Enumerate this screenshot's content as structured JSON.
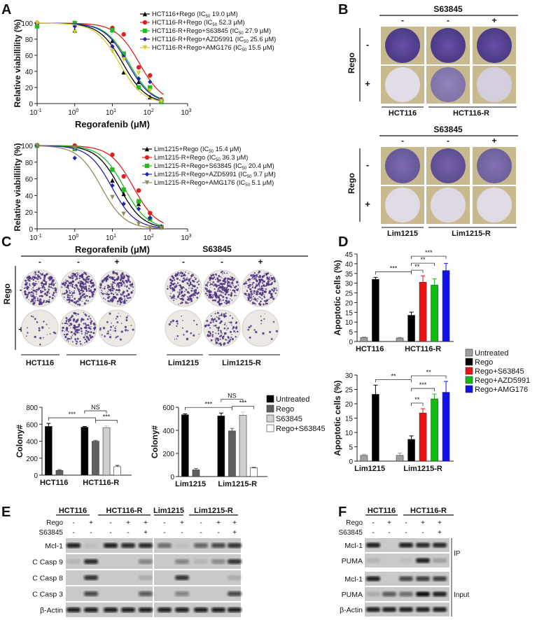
{
  "panels": {
    "a": "A",
    "b": "B",
    "c": "C",
    "d": "D",
    "e": "E",
    "f": "F"
  },
  "common": {
    "rego": "Rego",
    "s63845": "S63845",
    "minus": "-",
    "plus": "+",
    "ic_prefix": "IC",
    "ic_sub": "50"
  },
  "chart_data": [
    {
      "id": "A-top",
      "type": "line",
      "xscale": "log",
      "xlim": [
        0.1,
        1000
      ],
      "ylim": [
        0,
        100
      ],
      "xlabel": "Regorafenib (μM)",
      "ylabel": "Relative viabillility (%)",
      "xtick_base": "10",
      "xtick_exponents": [
        "-1",
        "0",
        "1",
        "2",
        "3"
      ],
      "yticks": [
        "0",
        "20",
        "40",
        "60",
        "80",
        "100"
      ],
      "x": [
        0.1,
        1,
        10,
        20,
        50,
        100,
        200
      ],
      "series": [
        {
          "name": "HCT116+Rego",
          "ic50": 19.0,
          "ic50_text": "19.0 μM",
          "color": "#000000",
          "marker": "triangle-up",
          "y": [
            100,
            91,
            78,
            39,
            27,
            8,
            4
          ]
        },
        {
          "name": "HCT116-R+Rego",
          "ic50": 52.3,
          "ic50_text": "52.3 μM",
          "color": "#e02020",
          "marker": "circle",
          "y": [
            100,
            100,
            94,
            86,
            45,
            35,
            5
          ]
        },
        {
          "name": "HCT116-R+Rego+S63845",
          "ic50": 27.9,
          "ic50_text": "27.9 μM",
          "color": "#22bb22",
          "marker": "square",
          "y": [
            96,
            100,
            91,
            62,
            20,
            20,
            2
          ]
        },
        {
          "name": "HCT116-R+Rego+AZD5991",
          "ic50": 25.6,
          "ic50_text": "25.6 μM",
          "color": "#2222aa",
          "marker": "diamond",
          "y": [
            100,
            96,
            71,
            58,
            31,
            27,
            4
          ]
        },
        {
          "name": "HCT116-R+Rego+AMG176",
          "ic50": 15.5,
          "ic50_text": "15.5 μM",
          "color": "#d8cc30",
          "marker": "triangle-down",
          "y": [
            100,
            89,
            65,
            55,
            38,
            16,
            3
          ]
        }
      ]
    },
    {
      "id": "A-bottom",
      "type": "line",
      "xscale": "log",
      "xlim": [
        0.1,
        1000
      ],
      "ylim": [
        0,
        100
      ],
      "xlabel": "Regorafenib (μM)",
      "ylabel": "Relative viabillility (%)",
      "xtick_base": "10",
      "xtick_exponents": [
        "-1",
        "0",
        "1",
        "2",
        "3"
      ],
      "yticks": [
        "0",
        "20",
        "40",
        "60",
        "80",
        "100"
      ],
      "x": [
        0.1,
        1,
        10,
        20,
        50,
        100,
        200
      ],
      "series": [
        {
          "name": "Lim1215+Rego",
          "ic50": 15.4,
          "ic50_text": "15.4 μM",
          "color": "#000000",
          "marker": "triangle-up",
          "y": [
            100,
            96,
            58,
            42,
            30,
            14,
            2
          ]
        },
        {
          "name": "Lim1215-R+Rego",
          "ic50": 36.3,
          "ic50_text": "36.3 μM",
          "color": "#e02020",
          "marker": "circle",
          "y": [
            100,
            100,
            89,
            63,
            46,
            19,
            2
          ]
        },
        {
          "name": "Lim1215-R+Rego+S63845",
          "ic50": 20.4,
          "ic50_text": "20.4 μM",
          "color": "#22bb22",
          "marker": "square",
          "y": [
            100,
            96,
            71,
            47,
            33,
            12,
            2
          ]
        },
        {
          "name": "Lim1215-R+Rego+AZD5991",
          "ic50": 9.7,
          "ic50_text": "9.7 μM",
          "color": "#2222aa",
          "marker": "diamond",
          "y": [
            100,
            85,
            52,
            30,
            24,
            13,
            3
          ]
        },
        {
          "name": "Lim1215-R+Rego+AMG176",
          "ic50": 5.1,
          "ic50_text": "5.1 μM",
          "color": "#958a5a",
          "marker": "triangle-down",
          "y": [
            100,
            97,
            38,
            18,
            6,
            2,
            1
          ]
        }
      ]
    },
    {
      "id": "C-left",
      "type": "bar",
      "ylabel": "Colony#",
      "ylim": [
        0,
        800
      ],
      "yticks": [
        "0",
        "200",
        "400",
        "600",
        "800"
      ],
      "series_colors": {
        "Untreated": "#000000",
        "Rego": "#606060",
        "S63845": "#d0d0d0",
        "Rego+S63845": "#ffffff"
      },
      "groups": [
        {
          "label": "HCT116",
          "bars": [
            {
              "series": "Untreated",
              "value": 575,
              "err": 35
            },
            {
              "series": "Rego",
              "value": 55,
              "err": 10
            }
          ]
        },
        {
          "label": "HCT116-R",
          "bars": [
            {
              "series": "Untreated",
              "value": 565,
              "err": 8
            },
            {
              "series": "Rego",
              "value": 400,
              "err": 10
            },
            {
              "series": "S63845",
              "value": 560,
              "err": 20
            },
            {
              "series": "Rego+S63845",
              "value": 100,
              "err": 15
            }
          ]
        }
      ],
      "annotations": [
        {
          "from": [
            0,
            0
          ],
          "to": [
            1,
            1
          ],
          "label": "***"
        },
        {
          "from": [
            1,
            1
          ],
          "to": [
            1,
            3
          ],
          "label": "***"
        },
        {
          "from": [
            1,
            0
          ],
          "to": [
            1,
            2
          ],
          "label": "NS"
        }
      ]
    },
    {
      "id": "C-right",
      "type": "bar",
      "ylabel": "Colony#",
      "ylim": [
        0,
        600
      ],
      "yticks": [
        "0",
        "200",
        "400",
        "600"
      ],
      "series_colors": {
        "Untreated": "#000000",
        "Rego": "#606060",
        "S63845": "#d0d0d0",
        "Rego+S63845": "#ffffff"
      },
      "legend": [
        "Untreated",
        "Rego",
        "S63845",
        "Rego+S63845"
      ],
      "groups": [
        {
          "label": "Lim1215",
          "bars": [
            {
              "series": "Untreated",
              "value": 535,
              "err": 8
            },
            {
              "series": "Rego",
              "value": 58,
              "err": 12
            }
          ]
        },
        {
          "label": "Lim1215-R",
          "bars": [
            {
              "series": "Untreated",
              "value": 525,
              "err": 25
            },
            {
              "series": "Rego",
              "value": 395,
              "err": 22
            },
            {
              "series": "S63845",
              "value": 530,
              "err": 30
            },
            {
              "series": "Rego+S63845",
              "value": 75,
              "err": 4
            }
          ]
        }
      ],
      "annotations": [
        {
          "from": [
            0,
            0
          ],
          "to": [
            1,
            1
          ],
          "label": "***"
        },
        {
          "from": [
            1,
            1
          ],
          "to": [
            1,
            3
          ],
          "label": "***"
        },
        {
          "from": [
            1,
            0
          ],
          "to": [
            1,
            2
          ],
          "label": "NS"
        }
      ]
    },
    {
      "id": "D-top",
      "type": "bar",
      "ylabel": "Apoptotic cells (%)",
      "ylim": [
        0,
        45
      ],
      "yticks": [
        "0",
        "5",
        "10",
        "15",
        "20",
        "25",
        "30",
        "35",
        "40",
        "45"
      ],
      "series_colors": {
        "Untreated": "#a0a0a0",
        "Rego": "#000000",
        "Rego+S63845": "#ee1111",
        "Rego+AZD5991": "#11bb11",
        "Rego+AMG176": "#1111ee"
      },
      "legend": [
        "Untreated",
        "Rego",
        "Rego+S63845",
        "Rego+AZD5991",
        "Rego+AMG176"
      ],
      "groups": [
        {
          "label": "HCT116",
          "bars": [
            {
              "series": "Untreated",
              "value": 2,
              "err": 0.4
            },
            {
              "series": "Rego",
              "value": 32,
              "err": 1
            }
          ]
        },
        {
          "label": "HCT116-R",
          "bars": [
            {
              "series": "Untreated",
              "value": 1.8,
              "err": 0.3
            },
            {
              "series": "Rego",
              "value": 13.5,
              "err": 1.6
            },
            {
              "series": "Rego+S63845",
              "value": 30.5,
              "err": 3.3
            },
            {
              "series": "Rego+AZD5991",
              "value": 29,
              "err": 3.2
            },
            {
              "series": "Rego+AMG176",
              "value": 36.5,
              "err": 3.7
            }
          ]
        }
      ],
      "annotations": [
        {
          "from": [
            0,
            1
          ],
          "to": [
            1,
            1
          ],
          "label": "***"
        },
        {
          "from": [
            1,
            1
          ],
          "to": [
            1,
            2
          ],
          "label": "**"
        },
        {
          "from": [
            1,
            1
          ],
          "to": [
            1,
            3
          ],
          "label": "**"
        },
        {
          "from": [
            1,
            1
          ],
          "to": [
            1,
            4
          ],
          "label": "***"
        }
      ]
    },
    {
      "id": "D-bottom",
      "type": "bar",
      "ylabel": "Apoptotic cells (%)",
      "ylim": [
        0,
        30
      ],
      "yticks": [
        "0",
        "5",
        "10",
        "15",
        "20",
        "25",
        "30"
      ],
      "series_colors": {
        "Untreated": "#a0a0a0",
        "Rego": "#000000",
        "Rego+S63845": "#ee1111",
        "Rego+AZD5991": "#11bb11",
        "Rego+AMG176": "#1111ee"
      },
      "groups": [
        {
          "label": "Lim1215",
          "bars": [
            {
              "series": "Untreated",
              "value": 2,
              "err": 0.4
            },
            {
              "series": "Rego",
              "value": 23.3,
              "err": 3.2
            }
          ]
        },
        {
          "label": "Lim1215-R",
          "bars": [
            {
              "series": "Untreated",
              "value": 2,
              "err": 0.8
            },
            {
              "series": "Rego",
              "value": 7.6,
              "err": 1.2
            },
            {
              "series": "Rego+S63845",
              "value": 16.8,
              "err": 1.5
            },
            {
              "series": "Rego+AZD5991",
              "value": 21.7,
              "err": 1.7
            },
            {
              "series": "Rego+AMG176",
              "value": 24,
              "err": 3.8
            }
          ]
        }
      ],
      "annotations": [
        {
          "from": [
            0,
            1
          ],
          "to": [
            1,
            1
          ],
          "label": "**"
        },
        {
          "from": [
            1,
            1
          ],
          "to": [
            1,
            2
          ],
          "label": "**"
        },
        {
          "from": [
            1,
            1
          ],
          "to": [
            1,
            3
          ],
          "label": "***"
        },
        {
          "from": [
            1,
            1
          ],
          "to": [
            1,
            4
          ],
          "label": "**"
        }
      ]
    }
  ],
  "panel_b": {
    "blocks": [
      {
        "cells": [
          "HCT116",
          "HCT116-R"
        ],
        "s63845": [
          "-",
          "-",
          "+"
        ],
        "rego": [
          "-",
          "+"
        ],
        "density": [
          [
            0.9,
            0.9,
            0.9
          ],
          [
            0.04,
            0.6,
            0.12
          ]
        ]
      },
      {
        "cells": [
          "Lim1215",
          "Lim1215-R"
        ],
        "s63845": [
          "-",
          "-",
          "+"
        ],
        "rego": [
          "-",
          "+"
        ],
        "density": [
          [
            0.75,
            0.8,
            0.7
          ],
          [
            0.05,
            0.06,
            0.05
          ]
        ]
      }
    ]
  },
  "panel_c": {
    "s63845": [
      "-",
      "-",
      "+",
      "-",
      "-",
      "+"
    ],
    "rego": [
      "-",
      "+"
    ],
    "cells": [
      "HCT116",
      "HCT116-R",
      "Lim1215",
      "Lim1215-R"
    ],
    "density": [
      [
        0.9,
        0.95,
        0.85,
        0.7,
        0.9,
        0.85
      ],
      [
        0.08,
        0.6,
        0.15,
        0.08,
        0.5,
        0.06
      ]
    ]
  },
  "panel_e": {
    "cells": [
      "HCT116",
      "HCT116-R",
      "Lim1215",
      "Lim1215-R"
    ],
    "rego": [
      "-",
      "+",
      "-",
      "+",
      "+",
      "-",
      "+",
      "-",
      "+",
      "+"
    ],
    "s63845": [
      "-",
      "-",
      "-",
      "-",
      "+",
      "-",
      "-",
      "-",
      "-",
      "+"
    ],
    "rows": [
      {
        "label": "Mcl-1",
        "bands": [
          0.9,
          0.05,
          0.9,
          0.85,
          0.85,
          0.5,
          0.05,
          0.55,
          0.7,
          0.8
        ]
      },
      {
        "label": "C Casp 9",
        "bands": [
          0.1,
          0.85,
          0,
          0,
          0.4,
          0,
          0.4,
          0.1,
          0.3,
          0.8
        ]
      },
      {
        "label": "C Casp 8",
        "bands": [
          0,
          0.8,
          0,
          0,
          0.15,
          0,
          0.8,
          0,
          0,
          0.15
        ]
      },
      {
        "label": "C Casp 3",
        "bands": [
          0,
          0.7,
          0,
          0,
          0.6,
          0,
          0.4,
          0,
          0,
          0.7
        ]
      },
      {
        "label": "β-Actin",
        "bands": [
          0.9,
          0.9,
          0.9,
          0.9,
          0.9,
          0.9,
          0.9,
          0.9,
          0.9,
          0.9
        ]
      }
    ]
  },
  "panel_f": {
    "cells": [
      "HCT116",
      "HCT116-R"
    ],
    "rego": [
      "-",
      "+",
      "-",
      "+",
      "+"
    ],
    "s63845": [
      "-",
      "-",
      "-",
      "-",
      "+"
    ],
    "sections": [
      "IP",
      "Input"
    ],
    "rows": [
      {
        "label": "Mcl-1",
        "section": 0,
        "bands": [
          0.9,
          0,
          0.9,
          0.85,
          0.85
        ]
      },
      {
        "label": "PUMA",
        "section": 0,
        "bands": [
          0.1,
          0,
          0.05,
          0.9,
          0.2
        ]
      },
      {
        "label": "Mcl-1",
        "section": 1,
        "bands": [
          0.9,
          0,
          0.7,
          0.75,
          0.75
        ]
      },
      {
        "label": "PUMA",
        "section": 1,
        "bands": [
          0.15,
          0.6,
          0.5,
          1,
          0.9
        ]
      },
      {
        "label": "β-Actin",
        "section": 1,
        "bands": [
          0.9,
          0.9,
          0.9,
          0.9,
          0.9
        ]
      }
    ]
  }
}
